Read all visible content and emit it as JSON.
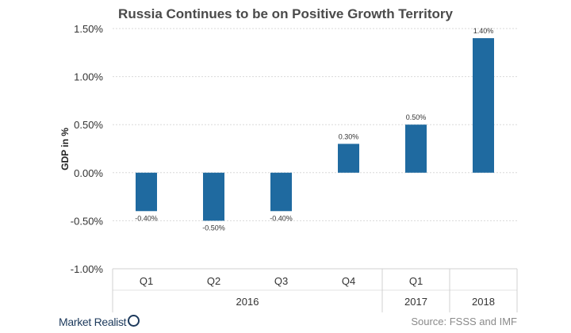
{
  "chart_data": {
    "type": "bar",
    "title": "Russia Continues to be on Positive Growth Territory",
    "ylabel": "GDP in %",
    "xlabel": "",
    "categories": [
      "Q1",
      "Q2",
      "Q3",
      "Q4",
      "Q1",
      ""
    ],
    "groups": [
      {
        "label": "2016",
        "span": [
          0,
          3
        ]
      },
      {
        "label": "2017",
        "span": [
          4,
          4
        ]
      },
      {
        "label": "2018",
        "span": [
          5,
          5
        ]
      }
    ],
    "values": [
      -0.4,
      -0.5,
      -0.4,
      0.3,
      0.5,
      1.4
    ],
    "value_labels": [
      "-0.40%",
      "-0.50%",
      "-0.40%",
      "0.30%",
      "0.50%",
      "1.40%"
    ],
    "ylim": [
      -1.0,
      1.5
    ],
    "yticks": [
      1.5,
      1.0,
      0.5,
      0.0,
      -0.5,
      -1.0
    ],
    "ytick_labels": [
      "1.50%",
      "1.00%",
      "0.50%",
      "0.00%",
      "-0.50%",
      "-1.00%"
    ],
    "grid": true,
    "bar_color": "#1f6aa0"
  },
  "footer": {
    "brand": "Market Realist",
    "source": "Source: FSSS and IMF"
  }
}
